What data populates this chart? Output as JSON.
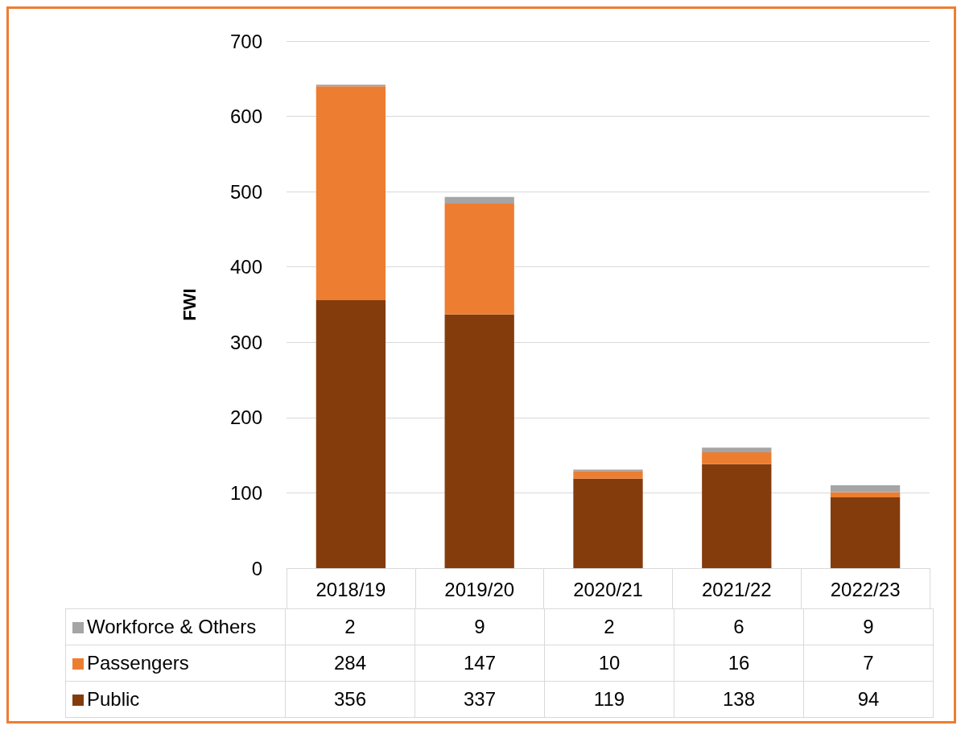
{
  "chart_data": {
    "type": "bar",
    "stacked": true,
    "ylabel": "FWI",
    "categories": [
      "2018/19",
      "2019/20",
      "2020/21",
      "2021/22",
      "2022/23"
    ],
    "series": [
      {
        "name": "Public",
        "color": "#843c0c",
        "values": [
          356,
          337,
          119,
          138,
          94
        ]
      },
      {
        "name": "Passengers",
        "color": "#ed7d31",
        "values": [
          284,
          147,
          10,
          16,
          7
        ]
      },
      {
        "name": "Workforce & Others",
        "color": "#a5a5a5",
        "values": [
          2,
          9,
          2,
          6,
          9
        ]
      }
    ],
    "ylim": [
      0,
      700
    ],
    "yticks": [
      0,
      100,
      200,
      300,
      400,
      500,
      600,
      700
    ],
    "grid": "y",
    "legend": "bottom",
    "data_labels": true
  }
}
